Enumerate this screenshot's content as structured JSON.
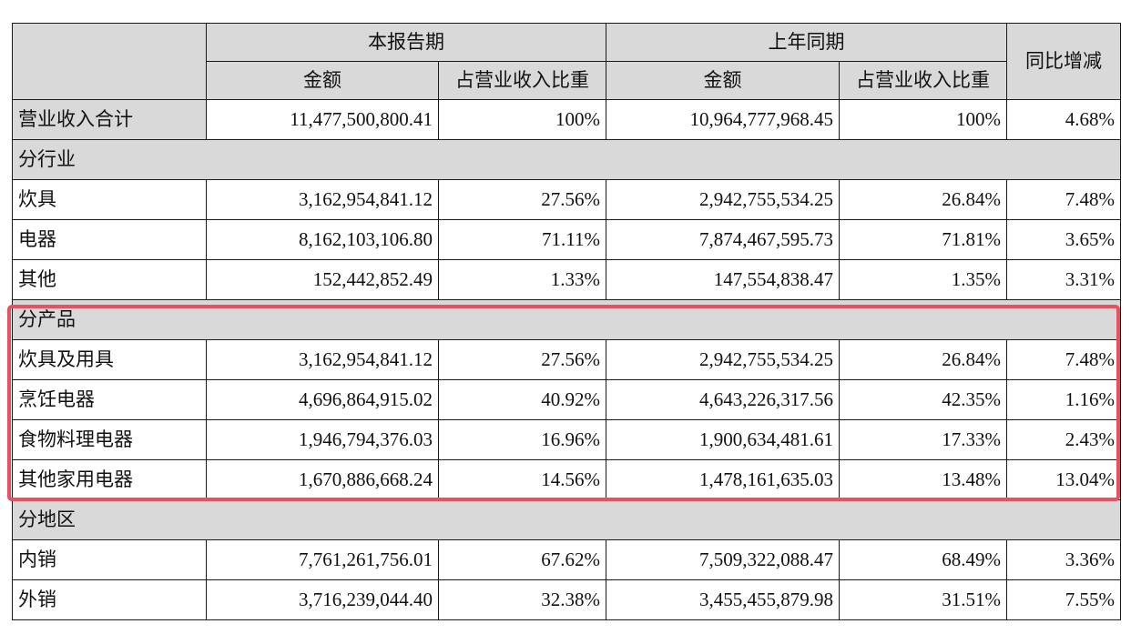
{
  "header": {
    "current_period": "本报告期",
    "prior_period": "上年同期",
    "amount": "金额",
    "share": "占营业收入比重",
    "yoy": "同比增减"
  },
  "total": {
    "label": "营业收入合计",
    "cur_amount": "11,477,500,800.41",
    "cur_share": "100%",
    "prev_amount": "10,964,777,968.45",
    "prev_share": "100%",
    "yoy": "4.68%"
  },
  "sections": [
    {
      "title": "分行业",
      "rows": [
        {
          "label": "炊具",
          "cur_amount": "3,162,954,841.12",
          "cur_share": "27.56%",
          "prev_amount": "2,942,755,534.25",
          "prev_share": "26.84%",
          "yoy": "7.48%"
        },
        {
          "label": "电器",
          "cur_amount": "8,162,103,106.80",
          "cur_share": "71.11%",
          "prev_amount": "7,874,467,595.73",
          "prev_share": "71.81%",
          "yoy": "3.65%"
        },
        {
          "label": "其他",
          "cur_amount": "152,442,852.49",
          "cur_share": "1.33%",
          "prev_amount": "147,554,838.47",
          "prev_share": "1.35%",
          "yoy": "3.31%"
        }
      ]
    },
    {
      "title": "分产品",
      "rows": [
        {
          "label": "炊具及用具",
          "cur_amount": "3,162,954,841.12",
          "cur_share": "27.56%",
          "prev_amount": "2,942,755,534.25",
          "prev_share": "26.84%",
          "yoy": "7.48%"
        },
        {
          "label": "烹饪电器",
          "cur_amount": "4,696,864,915.02",
          "cur_share": "40.92%",
          "prev_amount": "4,643,226,317.56",
          "prev_share": "42.35%",
          "yoy": "1.16%"
        },
        {
          "label": "食物料理电器",
          "cur_amount": "1,946,794,376.03",
          "cur_share": "16.96%",
          "prev_amount": "1,900,634,481.61",
          "prev_share": "17.33%",
          "yoy": "2.43%"
        },
        {
          "label": "其他家用电器",
          "cur_amount": "1,670,886,668.24",
          "cur_share": "14.56%",
          "prev_amount": "1,478,161,635.03",
          "prev_share": "13.48%",
          "yoy": "13.04%"
        }
      ]
    },
    {
      "title": "分地区",
      "rows": [
        {
          "label": "内销",
          "cur_amount": "7,761,261,756.01",
          "cur_share": "67.62%",
          "prev_amount": "7,509,322,088.47",
          "prev_share": "68.49%",
          "yoy": "3.36%"
        },
        {
          "label": "外销",
          "cur_amount": "3,716,239,044.40",
          "cur_share": "32.38%",
          "prev_amount": "3,455,455,879.98",
          "prev_share": "31.51%",
          "yoy": "7.55%"
        }
      ]
    }
  ],
  "colors": {
    "header_shade": "#d9d9d9",
    "highlight_border": "#e8515f"
  }
}
